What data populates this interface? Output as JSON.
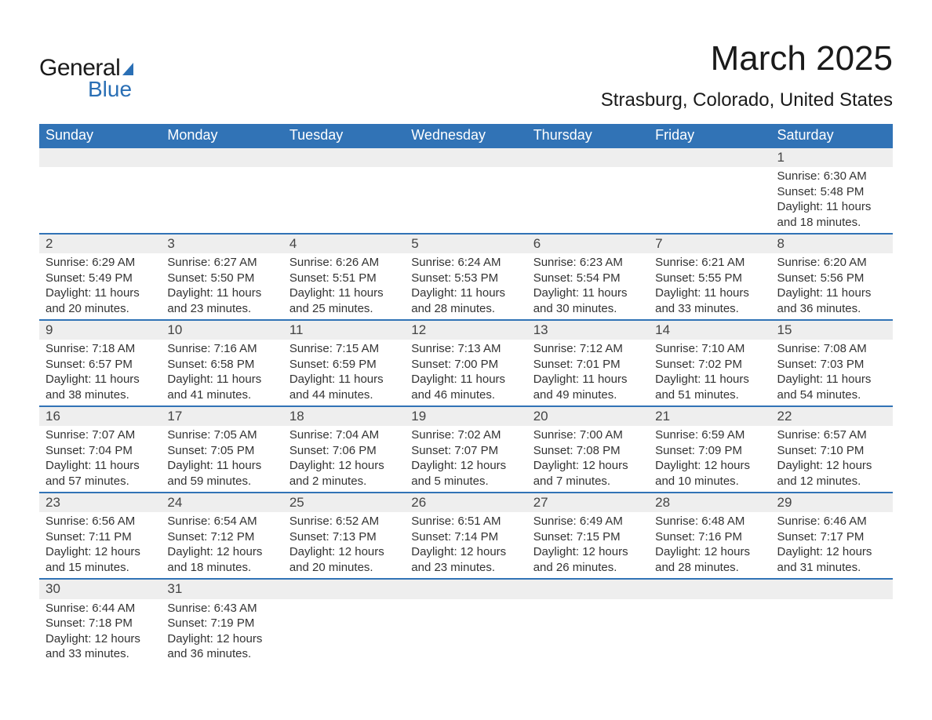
{
  "brand": {
    "word1": "General",
    "word2": "Blue",
    "accent_color": "#2a6fb5"
  },
  "title": "March 2025",
  "location": "Strasburg, Colorado, United States",
  "header_bg": "#3173b6",
  "header_fg": "#ffffff",
  "daynum_bg": "#eeeeee",
  "row_border": "#3173b6",
  "day_labels": [
    "Sunday",
    "Monday",
    "Tuesday",
    "Wednesday",
    "Thursday",
    "Friday",
    "Saturday"
  ],
  "weeks": [
    [
      null,
      null,
      null,
      null,
      null,
      null,
      {
        "n": "1",
        "sr": "Sunrise: 6:30 AM",
        "ss": "Sunset: 5:48 PM",
        "d1": "Daylight: 11 hours",
        "d2": "and 18 minutes."
      }
    ],
    [
      {
        "n": "2",
        "sr": "Sunrise: 6:29 AM",
        "ss": "Sunset: 5:49 PM",
        "d1": "Daylight: 11 hours",
        "d2": "and 20 minutes."
      },
      {
        "n": "3",
        "sr": "Sunrise: 6:27 AM",
        "ss": "Sunset: 5:50 PM",
        "d1": "Daylight: 11 hours",
        "d2": "and 23 minutes."
      },
      {
        "n": "4",
        "sr": "Sunrise: 6:26 AM",
        "ss": "Sunset: 5:51 PM",
        "d1": "Daylight: 11 hours",
        "d2": "and 25 minutes."
      },
      {
        "n": "5",
        "sr": "Sunrise: 6:24 AM",
        "ss": "Sunset: 5:53 PM",
        "d1": "Daylight: 11 hours",
        "d2": "and 28 minutes."
      },
      {
        "n": "6",
        "sr": "Sunrise: 6:23 AM",
        "ss": "Sunset: 5:54 PM",
        "d1": "Daylight: 11 hours",
        "d2": "and 30 minutes."
      },
      {
        "n": "7",
        "sr": "Sunrise: 6:21 AM",
        "ss": "Sunset: 5:55 PM",
        "d1": "Daylight: 11 hours",
        "d2": "and 33 minutes."
      },
      {
        "n": "8",
        "sr": "Sunrise: 6:20 AM",
        "ss": "Sunset: 5:56 PM",
        "d1": "Daylight: 11 hours",
        "d2": "and 36 minutes."
      }
    ],
    [
      {
        "n": "9",
        "sr": "Sunrise: 7:18 AM",
        "ss": "Sunset: 6:57 PM",
        "d1": "Daylight: 11 hours",
        "d2": "and 38 minutes."
      },
      {
        "n": "10",
        "sr": "Sunrise: 7:16 AM",
        "ss": "Sunset: 6:58 PM",
        "d1": "Daylight: 11 hours",
        "d2": "and 41 minutes."
      },
      {
        "n": "11",
        "sr": "Sunrise: 7:15 AM",
        "ss": "Sunset: 6:59 PM",
        "d1": "Daylight: 11 hours",
        "d2": "and 44 minutes."
      },
      {
        "n": "12",
        "sr": "Sunrise: 7:13 AM",
        "ss": "Sunset: 7:00 PM",
        "d1": "Daylight: 11 hours",
        "d2": "and 46 minutes."
      },
      {
        "n": "13",
        "sr": "Sunrise: 7:12 AM",
        "ss": "Sunset: 7:01 PM",
        "d1": "Daylight: 11 hours",
        "d2": "and 49 minutes."
      },
      {
        "n": "14",
        "sr": "Sunrise: 7:10 AM",
        "ss": "Sunset: 7:02 PM",
        "d1": "Daylight: 11 hours",
        "d2": "and 51 minutes."
      },
      {
        "n": "15",
        "sr": "Sunrise: 7:08 AM",
        "ss": "Sunset: 7:03 PM",
        "d1": "Daylight: 11 hours",
        "d2": "and 54 minutes."
      }
    ],
    [
      {
        "n": "16",
        "sr": "Sunrise: 7:07 AM",
        "ss": "Sunset: 7:04 PM",
        "d1": "Daylight: 11 hours",
        "d2": "and 57 minutes."
      },
      {
        "n": "17",
        "sr": "Sunrise: 7:05 AM",
        "ss": "Sunset: 7:05 PM",
        "d1": "Daylight: 11 hours",
        "d2": "and 59 minutes."
      },
      {
        "n": "18",
        "sr": "Sunrise: 7:04 AM",
        "ss": "Sunset: 7:06 PM",
        "d1": "Daylight: 12 hours",
        "d2": "and 2 minutes."
      },
      {
        "n": "19",
        "sr": "Sunrise: 7:02 AM",
        "ss": "Sunset: 7:07 PM",
        "d1": "Daylight: 12 hours",
        "d2": "and 5 minutes."
      },
      {
        "n": "20",
        "sr": "Sunrise: 7:00 AM",
        "ss": "Sunset: 7:08 PM",
        "d1": "Daylight: 12 hours",
        "d2": "and 7 minutes."
      },
      {
        "n": "21",
        "sr": "Sunrise: 6:59 AM",
        "ss": "Sunset: 7:09 PM",
        "d1": "Daylight: 12 hours",
        "d2": "and 10 minutes."
      },
      {
        "n": "22",
        "sr": "Sunrise: 6:57 AM",
        "ss": "Sunset: 7:10 PM",
        "d1": "Daylight: 12 hours",
        "d2": "and 12 minutes."
      }
    ],
    [
      {
        "n": "23",
        "sr": "Sunrise: 6:56 AM",
        "ss": "Sunset: 7:11 PM",
        "d1": "Daylight: 12 hours",
        "d2": "and 15 minutes."
      },
      {
        "n": "24",
        "sr": "Sunrise: 6:54 AM",
        "ss": "Sunset: 7:12 PM",
        "d1": "Daylight: 12 hours",
        "d2": "and 18 minutes."
      },
      {
        "n": "25",
        "sr": "Sunrise: 6:52 AM",
        "ss": "Sunset: 7:13 PM",
        "d1": "Daylight: 12 hours",
        "d2": "and 20 minutes."
      },
      {
        "n": "26",
        "sr": "Sunrise: 6:51 AM",
        "ss": "Sunset: 7:14 PM",
        "d1": "Daylight: 12 hours",
        "d2": "and 23 minutes."
      },
      {
        "n": "27",
        "sr": "Sunrise: 6:49 AM",
        "ss": "Sunset: 7:15 PM",
        "d1": "Daylight: 12 hours",
        "d2": "and 26 minutes."
      },
      {
        "n": "28",
        "sr": "Sunrise: 6:48 AM",
        "ss": "Sunset: 7:16 PM",
        "d1": "Daylight: 12 hours",
        "d2": "and 28 minutes."
      },
      {
        "n": "29",
        "sr": "Sunrise: 6:46 AM",
        "ss": "Sunset: 7:17 PM",
        "d1": "Daylight: 12 hours",
        "d2": "and 31 minutes."
      }
    ],
    [
      {
        "n": "30",
        "sr": "Sunrise: 6:44 AM",
        "ss": "Sunset: 7:18 PM",
        "d1": "Daylight: 12 hours",
        "d2": "and 33 minutes."
      },
      {
        "n": "31",
        "sr": "Sunrise: 6:43 AM",
        "ss": "Sunset: 7:19 PM",
        "d1": "Daylight: 12 hours",
        "d2": "and 36 minutes."
      },
      null,
      null,
      null,
      null,
      null
    ]
  ]
}
